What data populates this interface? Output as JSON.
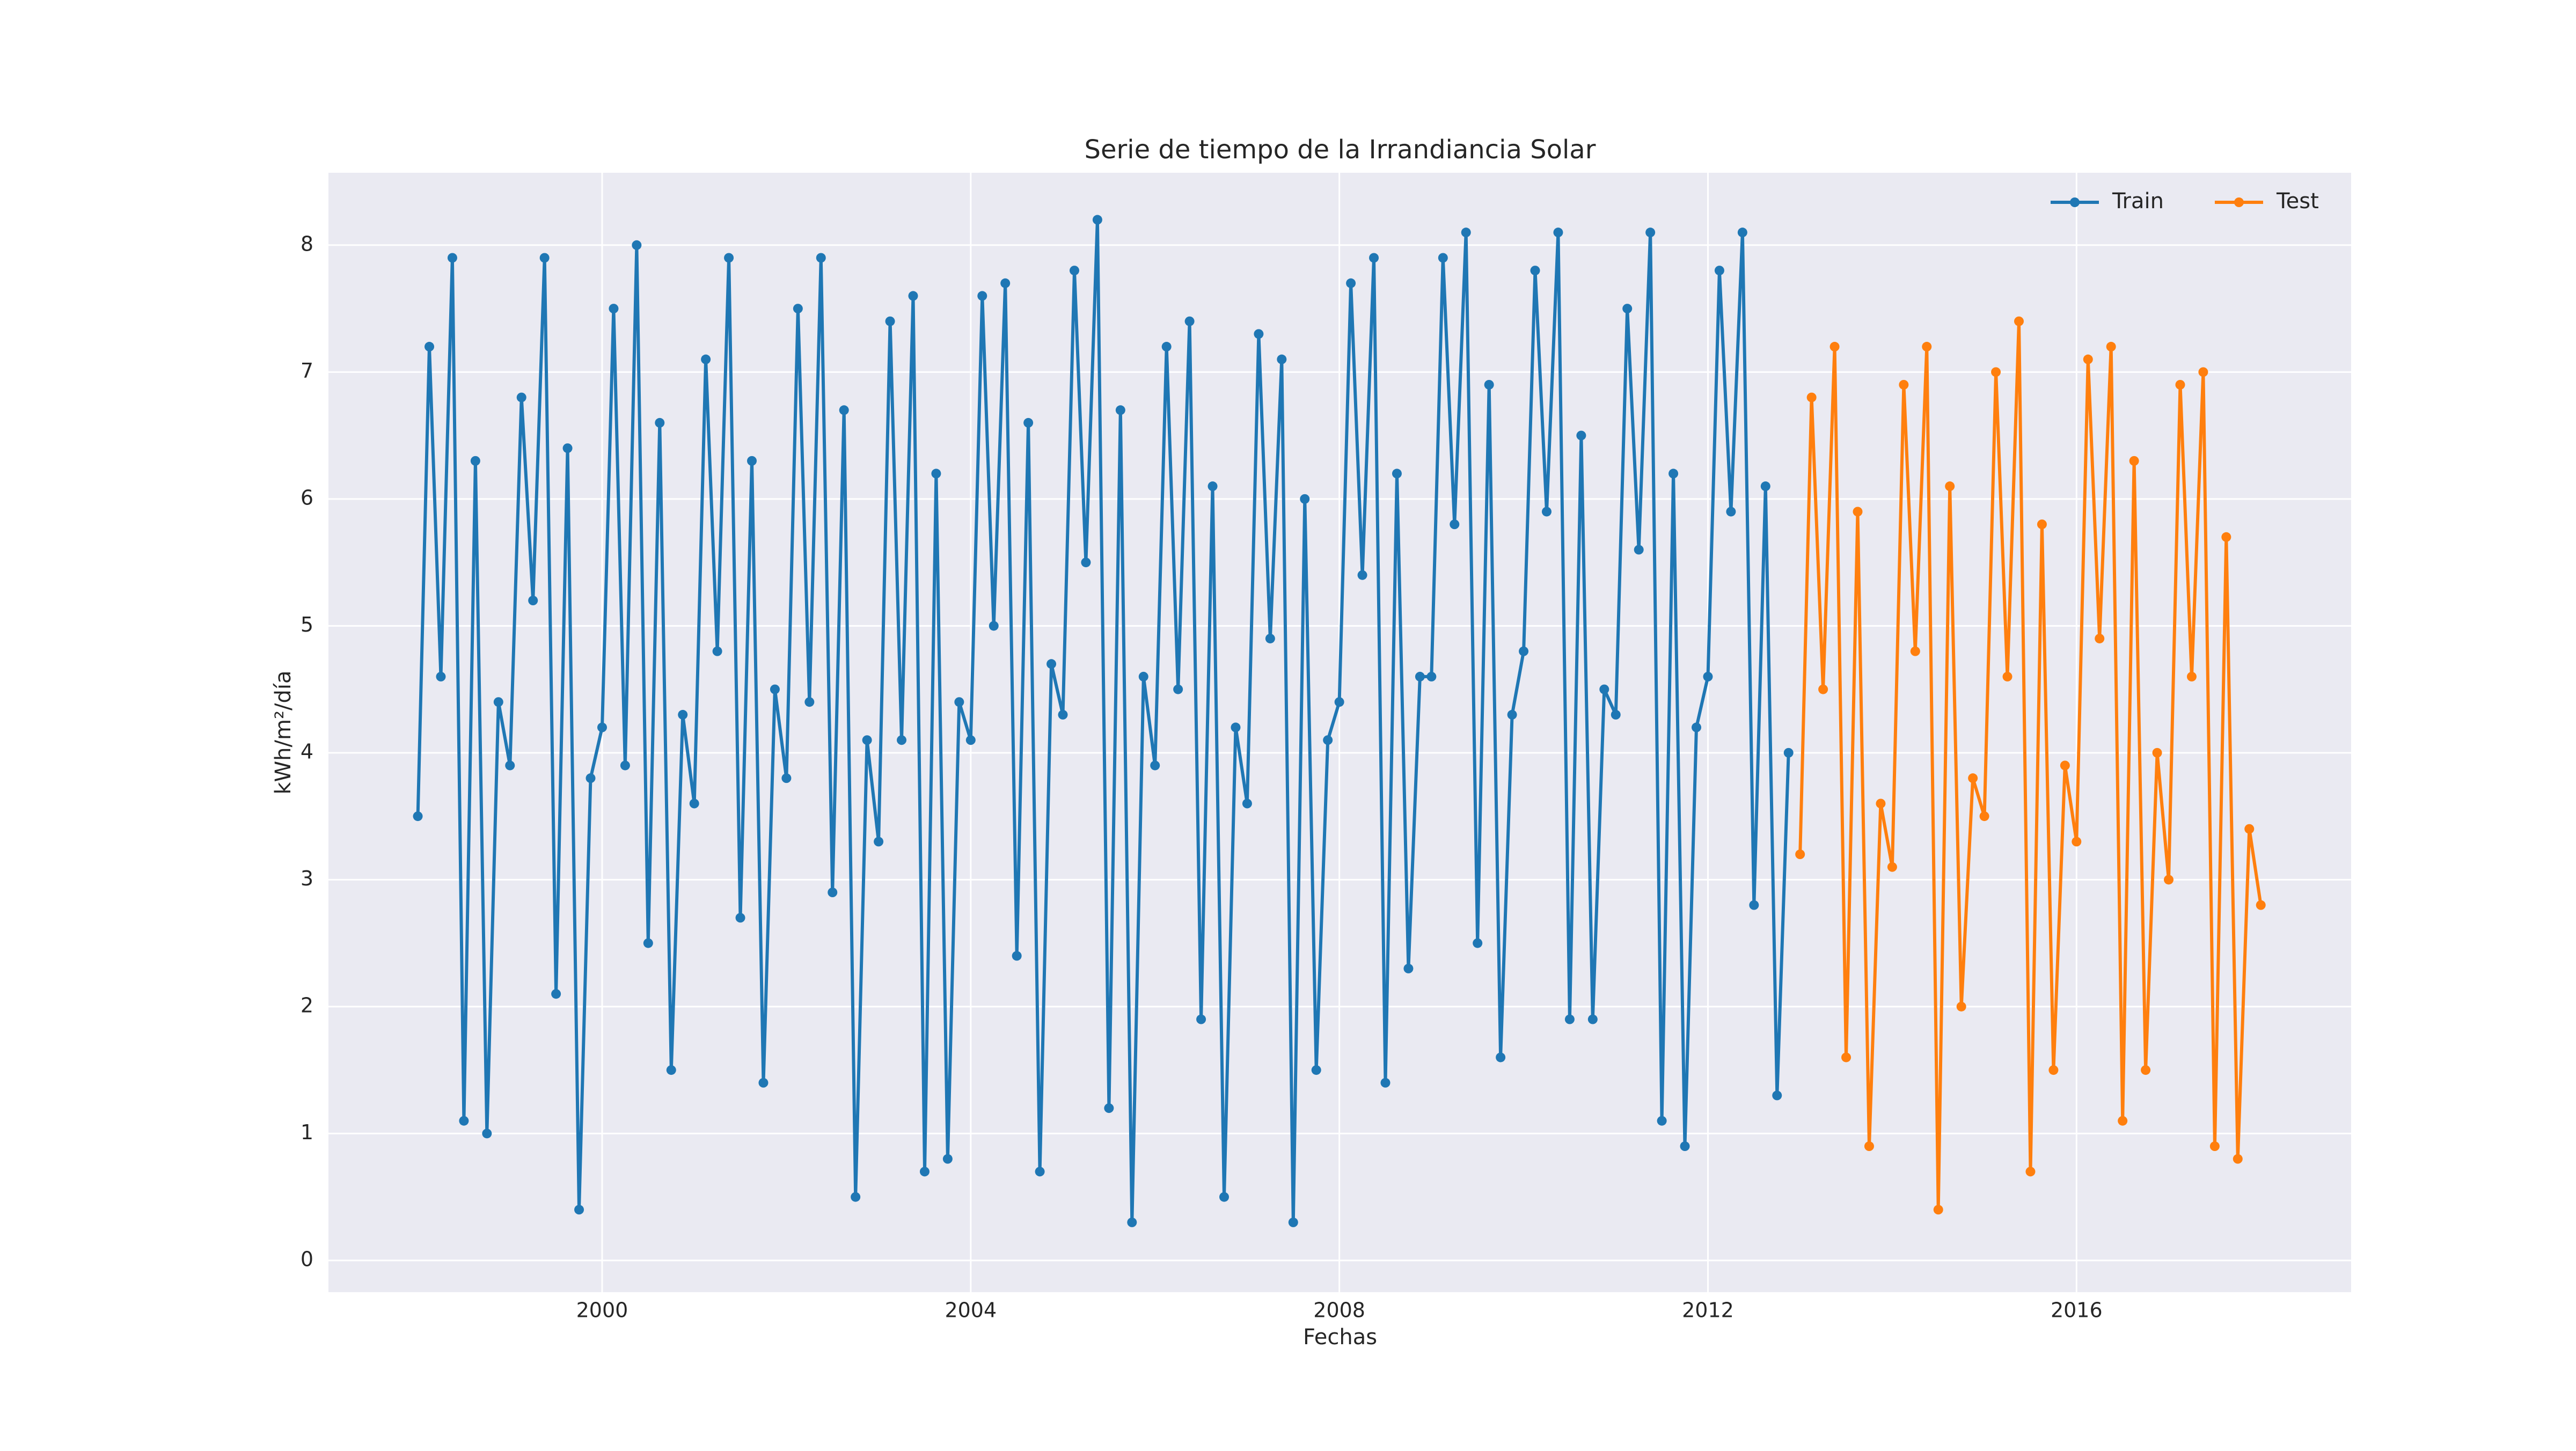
{
  "chart_data": {
    "type": "line",
    "title": "Serie de tiempo de la Irrandiancia Solar",
    "x_label": "Fechas",
    "y_label": "kWh/m²/día",
    "xlim": [
      1997.03,
      2018.98
    ],
    "xticks": [
      2000,
      2004,
      2008,
      2012,
      2016
    ],
    "ylim": [
      -0.25,
      8.57
    ],
    "yticks": [
      0,
      1,
      2,
      3,
      4,
      5,
      6,
      7,
      8
    ],
    "grid": true,
    "legend": "upper right",
    "background": "#eaeaf2",
    "series": [
      {
        "name": "Train",
        "color": "#1f77b4",
        "x": [
          1998.0,
          1998.125,
          1998.25,
          1998.375,
          1998.5,
          1998.625,
          1998.75,
          1998.875,
          1999.0,
          1999.125,
          1999.25,
          1999.375,
          1999.5,
          1999.625,
          1999.75,
          1999.875,
          2000.0,
          2000.125,
          2000.25,
          2000.375,
          2000.5,
          2000.625,
          2000.75,
          2000.875,
          2001.0,
          2001.125,
          2001.25,
          2001.375,
          2001.5,
          2001.625,
          2001.75,
          2001.875,
          2002.0,
          2002.125,
          2002.25,
          2002.375,
          2002.5,
          2002.625,
          2002.75,
          2002.875,
          2003.0,
          2003.125,
          2003.25,
          2003.375,
          2003.5,
          2003.625,
          2003.75,
          2003.875,
          2004.0,
          2004.125,
          2004.25,
          2004.375,
          2004.5,
          2004.625,
          2004.75,
          2004.875,
          2005.0,
          2005.125,
          2005.25,
          2005.375,
          2005.5,
          2005.625,
          2005.75,
          2005.875,
          2006.0,
          2006.125,
          2006.25,
          2006.375,
          2006.5,
          2006.625,
          2006.75,
          2006.875,
          2007.0,
          2007.125,
          2007.25,
          2007.375,
          2007.5,
          2007.625,
          2007.75,
          2007.875,
          2008.0,
          2008.125,
          2008.25,
          2008.375,
          2008.5,
          2008.625,
          2008.75,
          2008.875,
          2009.0,
          2009.125,
          2009.25,
          2009.375,
          2009.5,
          2009.625,
          2009.75,
          2009.875,
          2010.0,
          2010.125,
          2010.25,
          2010.375,
          2010.5,
          2010.625,
          2010.75,
          2010.875,
          2011.0,
          2011.125,
          2011.25,
          2011.375,
          2011.5,
          2011.625,
          2011.75,
          2011.875,
          2012.0,
          2012.125,
          2012.25,
          2012.375,
          2012.5,
          2012.625,
          2012.75,
          2012.875
        ],
        "values": [
          3.5,
          7.2,
          4.6,
          7.9,
          1.1,
          6.3,
          1.0,
          4.4,
          3.9,
          6.8,
          5.2,
          7.9,
          2.1,
          6.4,
          0.4,
          3.8,
          4.2,
          7.5,
          3.9,
          8.0,
          2.5,
          6.6,
          1.5,
          4.3,
          3.6,
          7.1,
          4.8,
          7.9,
          2.7,
          6.3,
          1.4,
          4.5,
          3.8,
          7.5,
          4.4,
          7.9,
          2.9,
          6.7,
          0.5,
          4.1,
          3.3,
          7.4,
          4.1,
          7.6,
          0.7,
          6.2,
          0.8,
          4.4,
          4.1,
          7.6,
          5.0,
          7.7,
          2.4,
          6.6,
          0.7,
          4.7,
          4.3,
          7.8,
          5.5,
          8.2,
          1.2,
          6.7,
          0.3,
          4.6,
          3.9,
          7.2,
          4.5,
          7.4,
          1.9,
          6.1,
          0.5,
          4.2,
          3.6,
          7.3,
          4.9,
          7.1,
          0.3,
          6.0,
          1.5,
          4.1,
          4.4,
          7.7,
          5.4,
          7.9,
          1.4,
          6.2,
          2.3,
          4.6,
          4.6,
          7.9,
          5.8,
          8.1,
          2.5,
          6.9,
          1.6,
          4.3,
          4.8,
          7.8,
          5.9,
          8.1,
          1.9,
          6.5,
          1.9,
          4.5,
          4.3,
          7.5,
          5.6,
          8.1,
          1.1,
          6.2,
          0.9,
          4.2,
          4.6,
          7.8,
          5.9,
          8.1,
          2.8,
          6.1,
          1.3,
          4.0
        ]
      },
      {
        "name": "Test",
        "color": "#ff7f0e",
        "x": [
          2013.0,
          2013.125,
          2013.25,
          2013.375,
          2013.5,
          2013.625,
          2013.75,
          2013.875,
          2014.0,
          2014.125,
          2014.25,
          2014.375,
          2014.5,
          2014.625,
          2014.75,
          2014.875,
          2015.0,
          2015.125,
          2015.25,
          2015.375,
          2015.5,
          2015.625,
          2015.75,
          2015.875,
          2016.0,
          2016.125,
          2016.25,
          2016.375,
          2016.5,
          2016.625,
          2016.75,
          2016.875,
          2017.0,
          2017.125,
          2017.25,
          2017.375,
          2017.5,
          2017.625,
          2017.75,
          2017.875,
          2018.0
        ],
        "values": [
          3.2,
          6.8,
          4.5,
          7.2,
          1.6,
          5.9,
          0.9,
          3.6,
          3.1,
          6.9,
          4.8,
          7.2,
          0.4,
          6.1,
          2.0,
          3.8,
          3.5,
          7.0,
          4.6,
          7.4,
          0.7,
          5.8,
          1.5,
          3.9,
          3.3,
          7.1,
          4.9,
          7.2,
          1.1,
          6.3,
          1.5,
          4.0,
          3.0,
          6.9,
          4.6,
          7.0,
          0.9,
          5.7,
          0.8,
          3.4,
          2.8
        ]
      }
    ]
  }
}
